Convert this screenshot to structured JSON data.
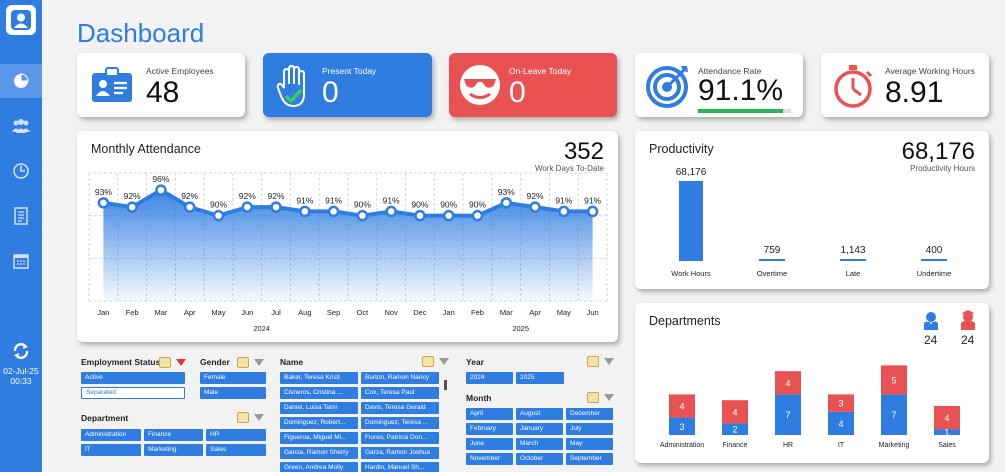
{
  "page_title": "Dashboard",
  "sidebar": {
    "items": [
      "pie-chart-icon",
      "team-icon",
      "clock-icon",
      "report-icon",
      "calendar-icon"
    ],
    "refresh_date": "02-Jul-25",
    "refresh_time": "00:33"
  },
  "kpis": {
    "active_employees": {
      "label": "Active Employees",
      "value": "48"
    },
    "present_today": {
      "label": "Present Today",
      "value": "0"
    },
    "on_leave_today": {
      "label": "On-Leave Today",
      "value": "0"
    },
    "attendance_rate": {
      "label": "Attendance Rate",
      "value": "91.1%",
      "progress": 0.911
    },
    "avg_working_hours": {
      "label": "Average Working Hours",
      "value": "8.91"
    }
  },
  "monthly_attendance": {
    "title": "Monthly Attendance",
    "total": "352",
    "total_label": "Work Days To-Date"
  },
  "productivity": {
    "title": "Productivity",
    "total": "68,176",
    "total_label": "Productivity Hours"
  },
  "departments": {
    "title": "Departments",
    "legend_blue_value": "24",
    "legend_red_value": "24",
    "colors": {
      "blue": "#2f7de1",
      "red": "#e85252"
    }
  },
  "chart_data": [
    {
      "type": "line",
      "title": "Monthly Attendance",
      "x": [
        "Jan",
        "Feb",
        "Mar",
        "Apr",
        "May",
        "Jun",
        "Jul",
        "Aug",
        "Sep",
        "Oct",
        "Nov",
        "Dec",
        "Jan",
        "Feb",
        "Mar",
        "Apr",
        "May",
        "Jun"
      ],
      "year_groups": [
        {
          "label": "2024",
          "count": 12
        },
        {
          "label": "2025",
          "count": 6
        }
      ],
      "values": [
        93,
        92,
        96,
        92,
        90,
        92,
        92,
        91,
        91,
        90,
        91,
        90,
        90,
        90,
        93,
        92,
        91,
        91
      ],
      "labels": [
        "93%",
        "92%",
        "96%",
        "92%",
        "90%",
        "92%",
        "92%",
        "91%",
        "91%",
        "90%",
        "91%",
        "90%",
        "90%",
        "90%",
        "93%",
        "92%",
        "91%",
        "91%"
      ],
      "grid": true,
      "ylim": [
        70,
        100
      ]
    },
    {
      "type": "bar",
      "title": "Productivity",
      "categories": [
        "Work Hours",
        "Overtime",
        "Late",
        "Undertime"
      ],
      "values": [
        68176,
        759,
        1143,
        400
      ],
      "labels": [
        "68,176",
        "759",
        "1,143",
        "400"
      ]
    },
    {
      "type": "bar",
      "title": "Departments",
      "stacked": true,
      "categories": [
        "Administration",
        "Finance",
        "HR",
        "IT",
        "Marketing",
        "Sales"
      ],
      "series": [
        {
          "values": [
            3,
            2,
            7,
            4,
            7,
            1
          ]
        },
        {
          "values": [
            4,
            4,
            4,
            3,
            5,
            4
          ]
        }
      ]
    }
  ],
  "slicers": {
    "employment_status": {
      "title": "Employment Status",
      "items": [
        {
          "label": "Active",
          "selected": true
        },
        {
          "label": "Separated",
          "selected": false
        }
      ]
    },
    "gender": {
      "title": "Gender",
      "items": [
        "Female",
        "Male"
      ]
    },
    "department": {
      "title": "Department",
      "items": [
        "Administration",
        "Finance",
        "HR",
        "IT",
        "Marketing",
        "Sales"
      ]
    },
    "name": {
      "title": "Name",
      "items": [
        "Baker, Teresa Kristi",
        "Burton, Ramon Nancy",
        "Cisneros, Cristina ...",
        "Cox, Teresa Paul",
        "Daniel, Luisa Tami",
        "Davis, Teresa Gerald",
        "Dominguez, Robert...",
        "Dominguez, Teresa ...",
        "Figueroa, Miguel Mi...",
        "Flores, Patricia Don...",
        "Garcia, Ramon Sherry",
        "Garza, Ramon Joshua",
        "Green, Andrea Molly",
        "Hardin, Manuel Sh..."
      ]
    },
    "year": {
      "title": "Year",
      "items": [
        "2024",
        "2025"
      ]
    },
    "month": {
      "title": "Month",
      "items": [
        "April",
        "August",
        "December",
        "February",
        "January",
        "July",
        "June",
        "March",
        "May",
        "November",
        "October",
        "September"
      ]
    }
  }
}
